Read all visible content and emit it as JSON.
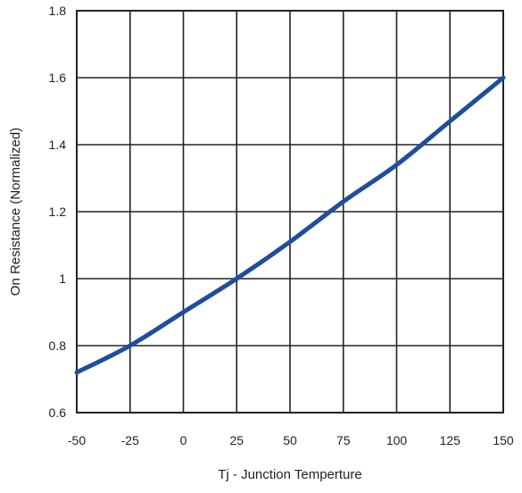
{
  "chart_data": {
    "type": "line",
    "title": "",
    "xlabel": "Tj - Junction Temperture",
    "ylabel": "On Resistance (Normalized)",
    "xlim": [
      -50,
      150
    ],
    "ylim": [
      0.6,
      1.8
    ],
    "xticks": [
      "-50",
      "-25",
      "0",
      "25",
      "50",
      "75",
      "100",
      "125",
      "150"
    ],
    "yticks": [
      "0.6",
      "0.8",
      "1",
      "1.2",
      "1.4",
      "1.6",
      "1.8"
    ],
    "grid": true,
    "series": [
      {
        "color": "#1f4e9c",
        "x": [
          -50,
          -25,
          0,
          25,
          50,
          75,
          100,
          125,
          150
        ],
        "y": [
          0.72,
          0.8,
          0.9,
          1.0,
          1.11,
          1.23,
          1.34,
          1.47,
          1.6
        ]
      }
    ]
  }
}
